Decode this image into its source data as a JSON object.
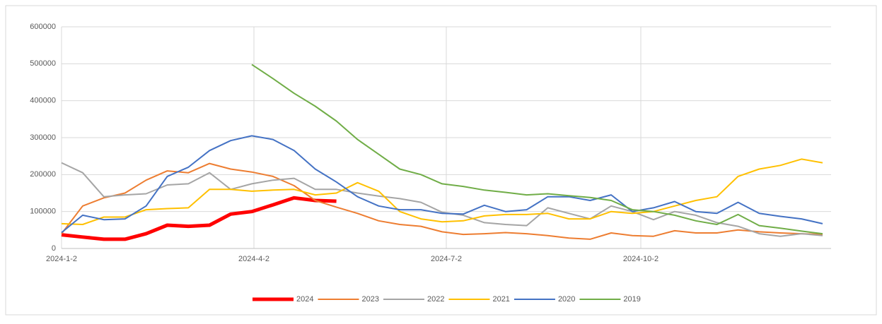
{
  "chart_data": {
    "type": "line",
    "x": [
      "2024-1-2",
      "2024-1-12",
      "2024-1-22",
      "2024-2-1",
      "2024-2-11",
      "2024-2-21",
      "2024-3-2",
      "2024-3-12",
      "2024-3-22",
      "2024-4-1",
      "2024-4-11",
      "2024-4-21",
      "2024-5-1",
      "2024-5-11",
      "2024-5-21",
      "2024-5-31",
      "2024-6-10",
      "2024-6-20",
      "2024-6-30",
      "2024-7-10",
      "2024-7-20",
      "2024-7-30",
      "2024-8-9",
      "2024-8-19",
      "2024-8-29",
      "2024-9-8",
      "2024-9-18",
      "2024-9-28",
      "2024-10-8",
      "2024-10-18",
      "2024-10-28",
      "2024-11-7",
      "2024-11-17",
      "2024-11-27",
      "2024-12-7",
      "2024-12-17",
      "2024-12-27"
    ],
    "xlim": [
      "2024-1-2",
      "2024-12-31"
    ],
    "xticks": [
      "2024-1-2",
      "2024-4-2",
      "2024-7-2",
      "2024-10-2"
    ],
    "ylim": [
      0,
      600000
    ],
    "yticks": [
      0,
      100000,
      200000,
      300000,
      400000,
      500000,
      600000
    ],
    "grid": true,
    "legend": "bottom",
    "series": [
      {
        "name": "2024",
        "color": "#ff0000",
        "values": [
          37000,
          31000,
          25000,
          25000,
          40000,
          63000,
          60000,
          63000,
          93000,
          100000,
          118000,
          137000,
          130000,
          128000,
          null,
          null,
          null,
          null,
          null,
          null,
          null,
          null,
          null,
          null,
          null,
          null,
          null,
          null,
          null,
          null,
          null,
          null,
          null,
          null,
          null,
          null,
          null
        ]
      },
      {
        "name": "2023",
        "color": "#ed7d31",
        "values": [
          40000,
          115000,
          137000,
          150000,
          185000,
          210000,
          205000,
          230000,
          215000,
          207000,
          195000,
          170000,
          130000,
          112000,
          95000,
          75000,
          65000,
          60000,
          45000,
          38000,
          40000,
          43000,
          40000,
          35000,
          28000,
          25000,
          42000,
          35000,
          33000,
          48000,
          42000,
          42000,
          50000,
          45000,
          42000,
          40000,
          38000
        ]
      },
      {
        "name": "2022",
        "color": "#a5a5a5",
        "values": [
          232000,
          205000,
          140000,
          145000,
          148000,
          172000,
          175000,
          205000,
          160000,
          175000,
          185000,
          190000,
          160000,
          160000,
          150000,
          142000,
          135000,
          125000,
          98000,
          90000,
          70000,
          65000,
          62000,
          110000,
          95000,
          80000,
          115000,
          100000,
          78000,
          100000,
          90000,
          70000,
          60000,
          40000,
          33000,
          40000,
          35000
        ]
      },
      {
        "name": "2021",
        "color": "#ffc000",
        "values": [
          67000,
          65000,
          85000,
          85000,
          105000,
          108000,
          110000,
          160000,
          160000,
          155000,
          158000,
          160000,
          145000,
          150000,
          178000,
          155000,
          100000,
          80000,
          72000,
          75000,
          88000,
          92000,
          92000,
          95000,
          80000,
          80000,
          100000,
          95000,
          100000,
          115000,
          130000,
          140000,
          195000,
          215000,
          225000,
          242000,
          232000
        ]
      },
      {
        "name": "2020",
        "color": "#4472c4",
        "values": [
          43000,
          90000,
          78000,
          80000,
          115000,
          195000,
          220000,
          265000,
          292000,
          305000,
          295000,
          265000,
          215000,
          180000,
          140000,
          115000,
          105000,
          105000,
          95000,
          93000,
          117000,
          100000,
          105000,
          140000,
          140000,
          130000,
          145000,
          100000,
          110000,
          127000,
          100000,
          95000,
          125000,
          95000,
          87000,
          80000,
          67000
        ]
      },
      {
        "name": "2019",
        "color": "#70ad47",
        "values": [
          null,
          null,
          null,
          null,
          null,
          null,
          null,
          null,
          null,
          498000,
          460000,
          420000,
          385000,
          345000,
          295000,
          255000,
          215000,
          200000,
          175000,
          168000,
          158000,
          152000,
          145000,
          148000,
          143000,
          138000,
          130000,
          105000,
          100000,
          90000,
          75000,
          65000,
          92000,
          62000,
          55000,
          47000,
          40000
        ]
      }
    ]
  }
}
